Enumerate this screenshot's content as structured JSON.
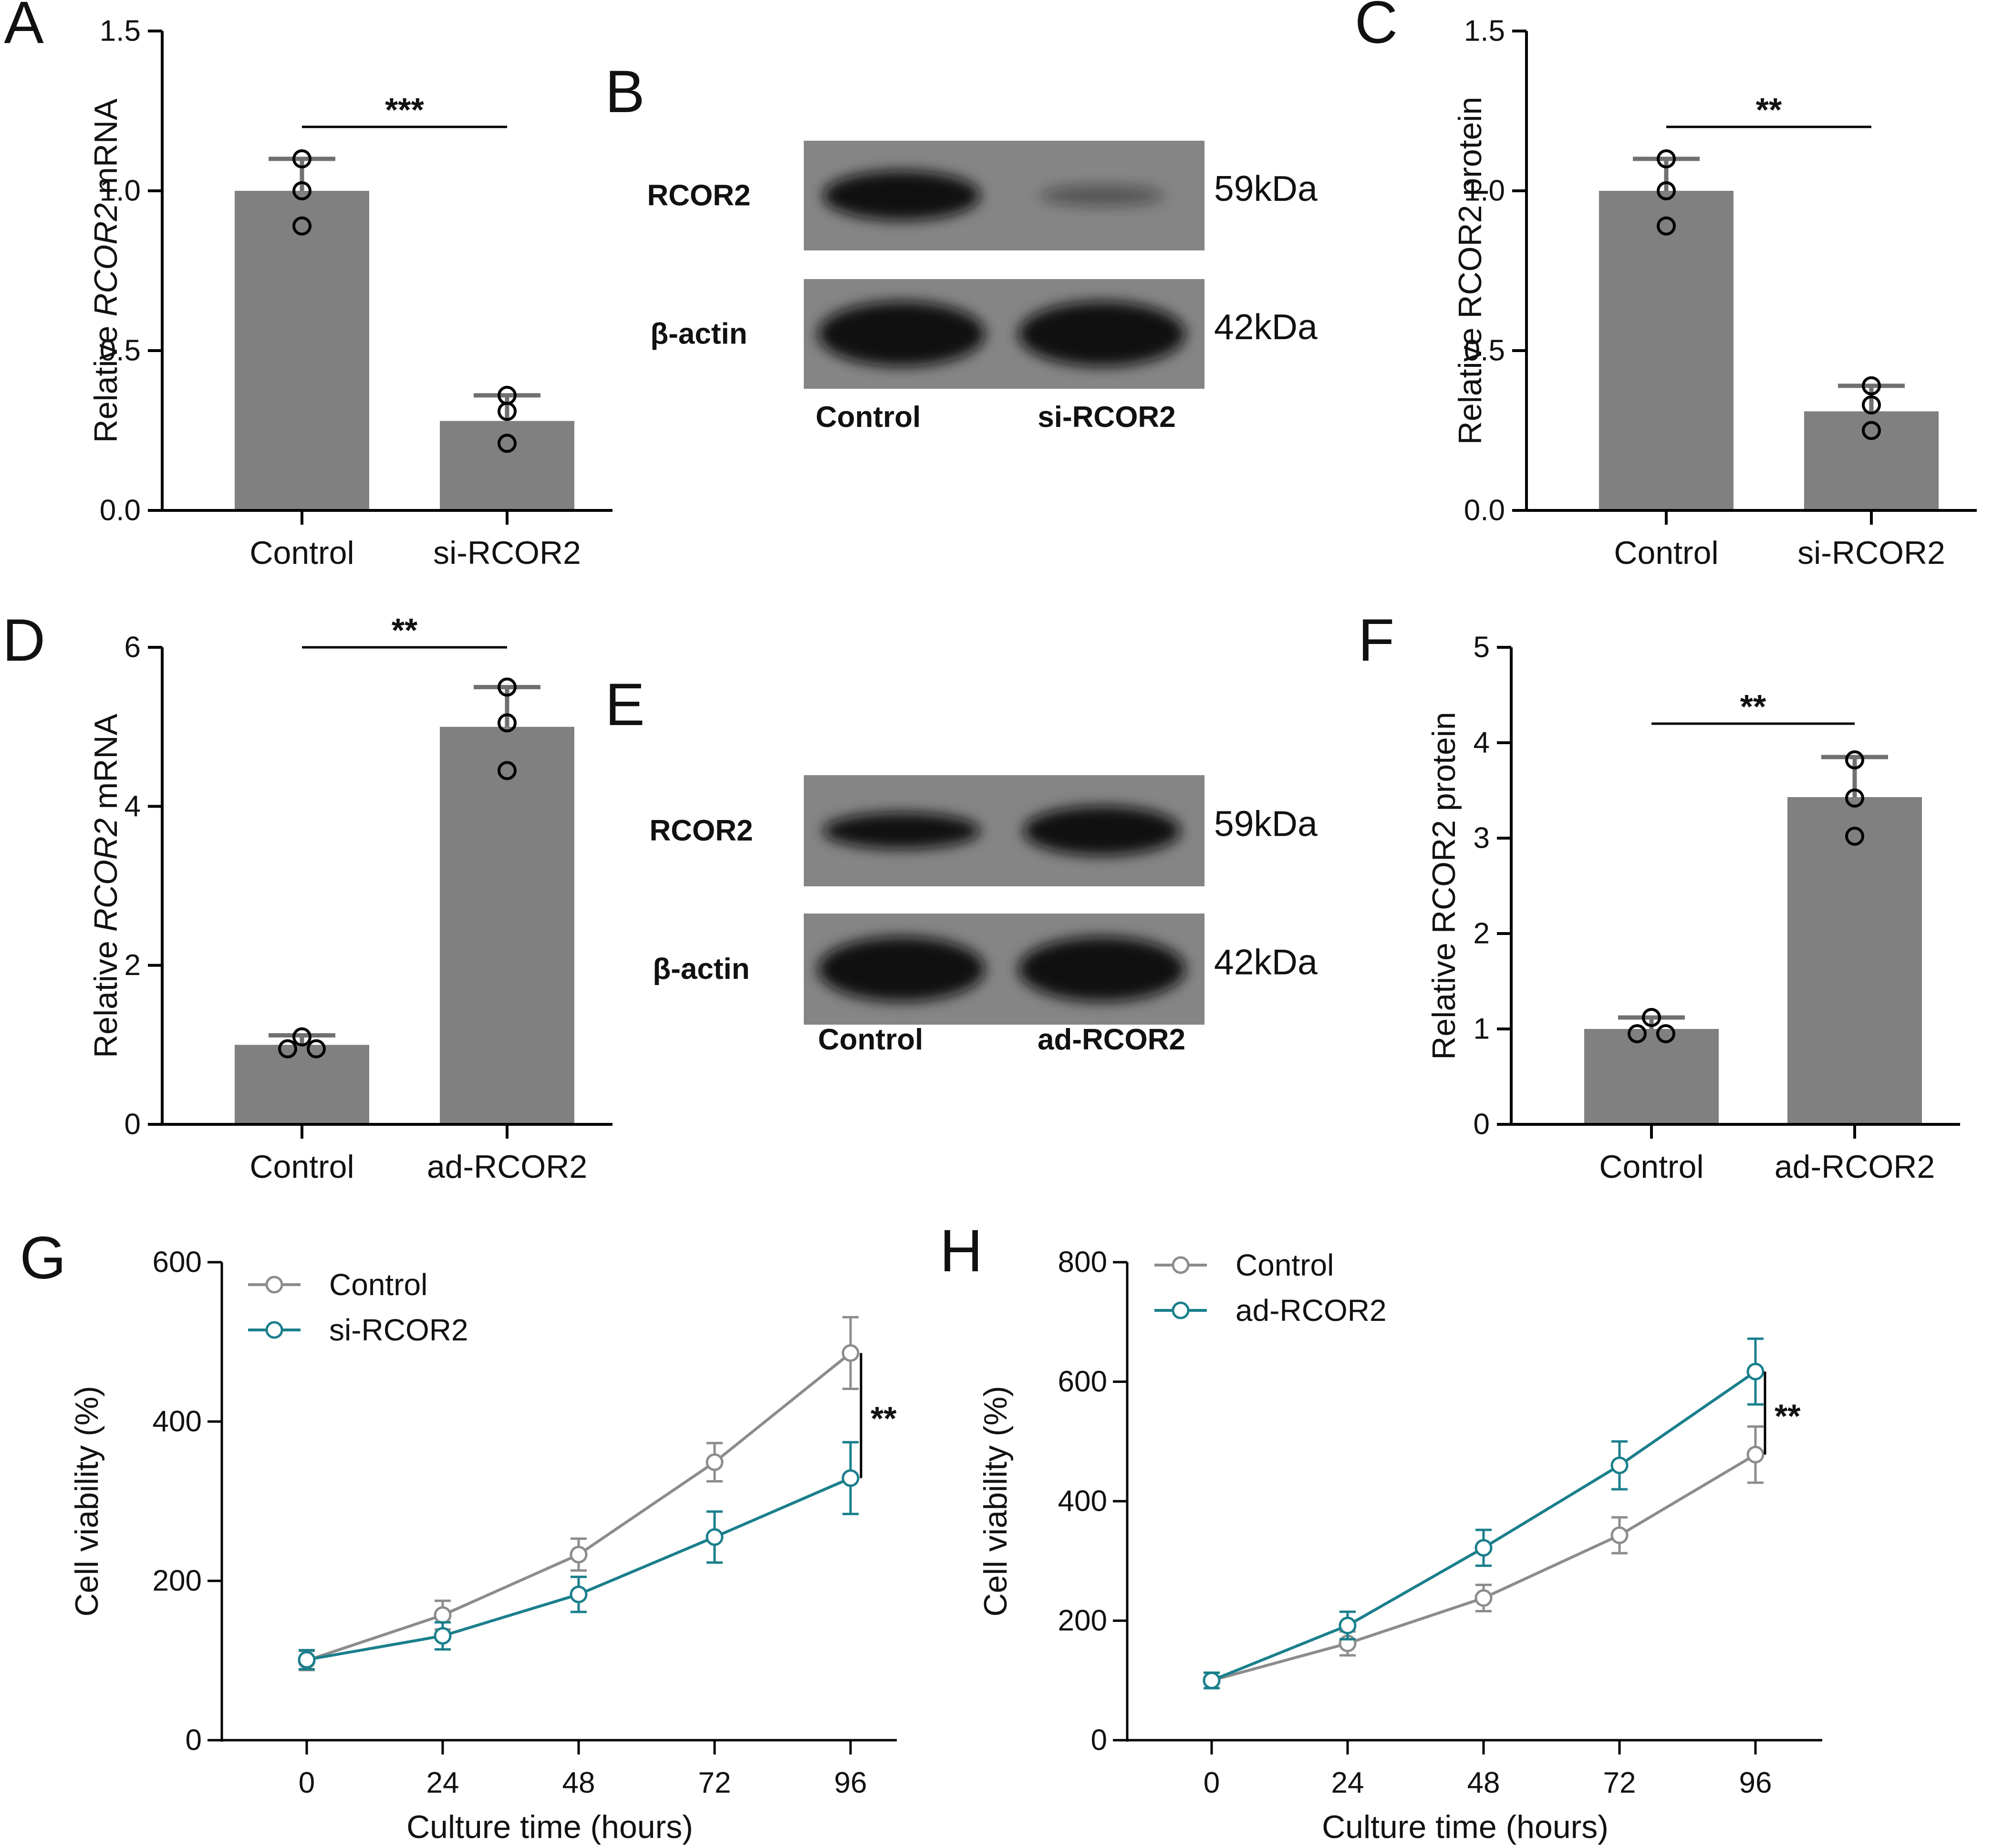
{
  "colors": {
    "bar": "#808080",
    "errorbar": "#707070",
    "axis": "#000000",
    "control_line": "#8c8c8c",
    "treatment_line": "#1a7f8c",
    "blot_bg": "#858585",
    "blot_band": "#0d0d0d"
  },
  "chart_data": [
    {
      "panel": "A",
      "type": "bar",
      "ylabel_parts": [
        "Relative ",
        "RCOR2",
        " mRNA"
      ],
      "ylim": [
        0,
        1.5
      ],
      "yticks": [
        "0.0",
        "0.5",
        "1.0",
        "1.5"
      ],
      "categories": [
        "Control",
        "si-RCOR2"
      ],
      "values": [
        1.0,
        0.28
      ],
      "errors": [
        0.1,
        0.08
      ],
      "points": [
        [
          1.1,
          1.0,
          0.89
        ],
        [
          0.36,
          0.31,
          0.21
        ]
      ],
      "significance": "***"
    },
    {
      "panel": "C",
      "type": "bar",
      "ylabel_parts": [
        "Relative RCOR2 protein"
      ],
      "ylim": [
        0,
        1.5
      ],
      "yticks": [
        "0.0",
        "0.5",
        "1.0",
        "1.5"
      ],
      "categories": [
        "Control",
        "si-RCOR2"
      ],
      "values": [
        1.0,
        0.31
      ],
      "errors": [
        0.1,
        0.08
      ],
      "points": [
        [
          1.1,
          1.0,
          0.89
        ],
        [
          0.39,
          0.33,
          0.25
        ]
      ],
      "significance": "**"
    },
    {
      "panel": "D",
      "type": "bar",
      "ylabel_parts": [
        "Relative ",
        "RCOR2",
        " mRNA"
      ],
      "ylim": [
        0,
        6
      ],
      "yticks": [
        "0",
        "2",
        "4",
        "6"
      ],
      "categories": [
        "Control",
        "ad-RCOR2"
      ],
      "values": [
        1.0,
        5.0
      ],
      "errors": [
        0.12,
        0.5
      ],
      "points": [
        [
          1.1,
          0.95,
          0.95
        ],
        [
          5.5,
          5.05,
          4.45
        ]
      ],
      "significance": "**"
    },
    {
      "panel": "F",
      "type": "bar",
      "ylabel_parts": [
        "Relative RCOR2 protein"
      ],
      "ylim": [
        0,
        5
      ],
      "yticks": [
        "0",
        "1",
        "2",
        "3",
        "4",
        "5"
      ],
      "categories": [
        "Control",
        "ad-RCOR2"
      ],
      "values": [
        1.0,
        3.43
      ],
      "errors": [
        0.12,
        0.42
      ],
      "points": [
        [
          1.12,
          0.95,
          0.95
        ],
        [
          3.82,
          3.42,
          3.02
        ]
      ],
      "significance": "**"
    },
    {
      "panel": "G",
      "type": "line",
      "xlabel": "Culture time (hours)",
      "ylabel": "Cell viability (%)",
      "x": [
        0,
        24,
        48,
        72,
        96
      ],
      "xticks": [
        "0",
        "24",
        "48",
        "72",
        "96"
      ],
      "ylim": [
        0,
        600
      ],
      "yticks": [
        "0",
        "200",
        "400",
        "600"
      ],
      "series": [
        {
          "name": "Control",
          "values": [
            100,
            157,
            233,
            349,
            486
          ],
          "errors": [
            12,
            18,
            20,
            24,
            45
          ]
        },
        {
          "name": "si-RCOR2",
          "values": [
            101,
            131,
            183,
            255,
            329
          ],
          "errors": [
            12,
            17,
            22,
            32,
            45
          ]
        }
      ],
      "significance": "**"
    },
    {
      "panel": "H",
      "type": "line",
      "xlabel": "Culture time (hours)",
      "ylabel": "Cell viability (%)",
      "x": [
        0,
        24,
        48,
        72,
        96
      ],
      "xticks": [
        "0",
        "24",
        "48",
        "72",
        "96"
      ],
      "ylim": [
        0,
        800
      ],
      "yticks": [
        "0",
        "200",
        "400",
        "600",
        "800"
      ],
      "series": [
        {
          "name": "Control",
          "values": [
            100,
            162,
            238,
            343,
            478
          ],
          "errors": [
            13,
            20,
            22,
            30,
            47
          ]
        },
        {
          "name": "ad-RCOR2",
          "values": [
            100,
            192,
            322,
            460,
            617
          ],
          "errors": [
            13,
            23,
            30,
            40,
            55
          ]
        }
      ],
      "significance": "**"
    }
  ],
  "blots": [
    {
      "panel": "B",
      "rows": [
        {
          "label": "RCOR2",
          "size": "59kDa"
        },
        {
          "label": "β-actin",
          "size": "42kDa"
        }
      ],
      "lanes": [
        "Control",
        "si-RCOR2"
      ],
      "band_intensity": [
        [
          1.0,
          0.3
        ],
        [
          1.0,
          1.0
        ]
      ]
    },
    {
      "panel": "E",
      "rows": [
        {
          "label": "RCOR2",
          "size": "59kDa"
        },
        {
          "label": "β-actin",
          "size": "42kDa"
        }
      ],
      "lanes": [
        "Control",
        "ad-RCOR2"
      ],
      "band_intensity": [
        [
          0.75,
          1.0
        ],
        [
          1.0,
          1.0
        ]
      ]
    }
  ]
}
